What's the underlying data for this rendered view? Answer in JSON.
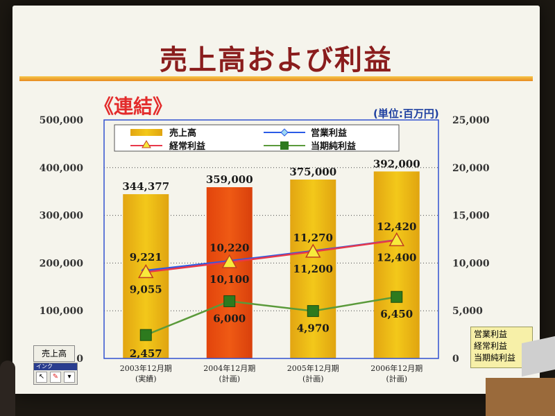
{
  "title": "売上高および利益",
  "scope_label": "《連結》",
  "unit_label": "(単位:百万円)",
  "legend": {
    "sales": "売上高",
    "operating": "営業利益",
    "ordinary": "経常利益",
    "net": "当期純利益"
  },
  "side_box": [
    "営業利益",
    "経常利益",
    "当期純利益"
  ],
  "ui": {
    "sales_button": "売上高",
    "ink_toolbar": "インク"
  },
  "colors": {
    "sales_bar": "#f3c81a",
    "sales_bar_highlight": "#ef5a14",
    "operating_line": "#2a5ae6",
    "ordinary_line": "#e8384a",
    "net_line": "#5a9a3a",
    "title": "#8a1d1d"
  },
  "chart_data": {
    "type": "bar",
    "categories": [
      [
        "2003年12月期",
        "(実績)"
      ],
      [
        "2004年12月期",
        "(計画)"
      ],
      [
        "2005年12月期",
        "(計画)"
      ],
      [
        "2006年12月期",
        "(計画)"
      ]
    ],
    "left_axis": {
      "ylim": [
        0,
        500000
      ],
      "ticks": [
        "0",
        "100,000",
        "200,000",
        "300,000",
        "400,000",
        "500,000"
      ]
    },
    "right_axis": {
      "ylim": [
        0,
        25000
      ],
      "ticks": [
        "0",
        "5,000",
        "10,000",
        "15,000",
        "20,000",
        "25,000"
      ]
    },
    "series": [
      {
        "name": "売上高",
        "type": "bar",
        "axis": "left",
        "values": [
          344377,
          359000,
          375000,
          392000
        ],
        "labels": [
          "344,377",
          "359,000",
          "375,000",
          "392,000"
        ]
      },
      {
        "name": "営業利益",
        "type": "line",
        "axis": "right",
        "values": [
          9221,
          10220,
          11270,
          12420
        ],
        "labels": [
          "9,221",
          "10,220",
          "11,270",
          "12,420"
        ]
      },
      {
        "name": "経常利益",
        "type": "line",
        "axis": "right",
        "values": [
          9055,
          10100,
          11200,
          12400
        ],
        "labels": [
          "9,055",
          "10,100",
          "11,200",
          "12,400"
        ]
      },
      {
        "name": "当期純利益",
        "type": "line",
        "axis": "right",
        "values": [
          2457,
          6000,
          4970,
          6450
        ],
        "labels": [
          "2,457",
          "6,000",
          "4,970",
          "6,450"
        ]
      }
    ],
    "grid": true,
    "legend_position": "top"
  }
}
